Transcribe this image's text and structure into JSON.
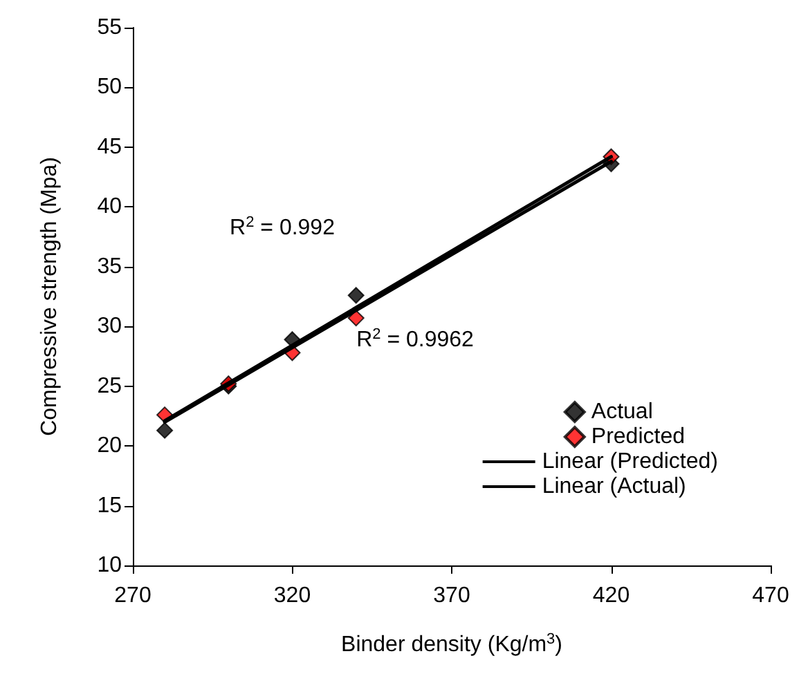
{
  "chart_data": {
    "type": "scatter",
    "xlabel": "Binder density (Kg/m$^{3}$)",
    "ylabel": "Compressive strength (Mpa)",
    "xlim": [
      270,
      470
    ],
    "xticks": [
      270,
      320,
      370,
      420,
      470
    ],
    "ylim": [
      10,
      55
    ],
    "yticks": [
      10,
      15,
      20,
      25,
      30,
      35,
      40,
      45,
      50,
      55
    ],
    "grid": false,
    "legend": "right",
    "marker": "diamond",
    "series": [
      {
        "name": "Actual",
        "color": "#000000",
        "x": [
          280,
          300,
          320,
          340,
          420
        ],
        "values": [
          21.3,
          25,
          28.9,
          32.6,
          43.6
        ]
      },
      {
        "name": "Predicted",
        "color": "#ff0000",
        "x": [
          280,
          300,
          320,
          340,
          420
        ],
        "values": [
          22.6,
          25.2,
          27.8,
          30.7,
          44.2
        ]
      },
      {
        "name": "Linear (Predicted)",
        "type": "line",
        "marker": "none",
        "line_style": "solid",
        "color": "#000000",
        "x": [
          280,
          420
        ],
        "values": [
          22.0,
          43.8
        ]
      },
      {
        "name": "Linear (Actual)",
        "type": "line",
        "marker": "none",
        "line_style": "solid",
        "color": "#000000",
        "x": [
          280,
          420
        ],
        "values": [
          22.1,
          44.2
        ]
      }
    ],
    "annotations": [
      "R$^{2}$ = 0.992",
      "R$^{2}$ = 0.9962"
    ]
  }
}
